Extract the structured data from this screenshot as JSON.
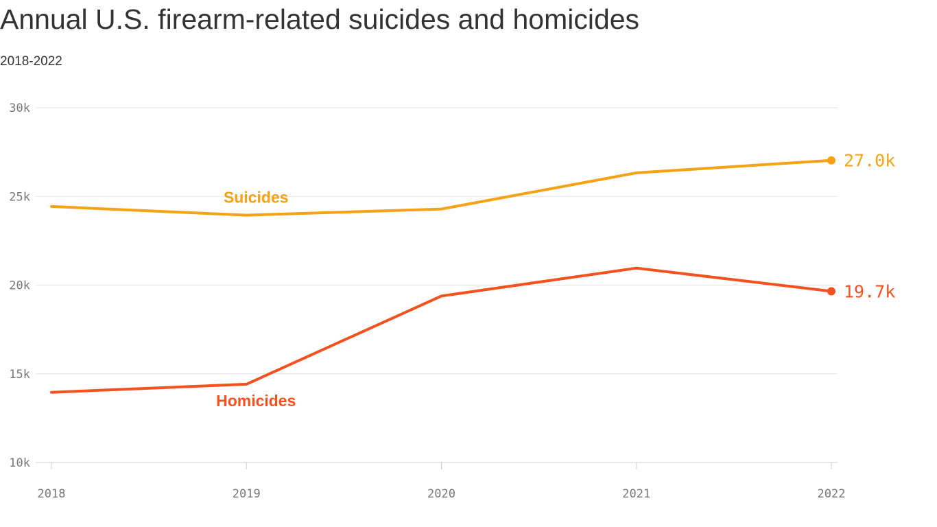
{
  "title": "Annual U.S. firearm-related suicides and homicides",
  "subtitle": "2018-2022",
  "chart_data": {
    "type": "line",
    "title": "Annual U.S. firearm-related suicides and homicides",
    "subtitle": "2018-2022",
    "x": [
      2018,
      2019,
      2020,
      2021,
      2022
    ],
    "x_tick_labels": [
      "2018",
      "2019",
      "2020",
      "2021",
      "2022"
    ],
    "ylim": [
      10000,
      30000
    ],
    "y_ticks": [
      10000,
      15000,
      20000,
      25000,
      30000
    ],
    "y_tick_labels": [
      "10k",
      "15k",
      "20k",
      "25k",
      "30k"
    ],
    "grid": true,
    "legend": "none",
    "series": [
      {
        "name": "Suicides",
        "color": "#f5a214",
        "values": [
          24432,
          23941,
          24292,
          26328,
          27032
        ],
        "end_label": "27.0k"
      },
      {
        "name": "Homicides",
        "color": "#f4511e",
        "values": [
          13958,
          14414,
          19384,
          20958,
          19651
        ],
        "end_label": "19.7k"
      }
    ]
  }
}
